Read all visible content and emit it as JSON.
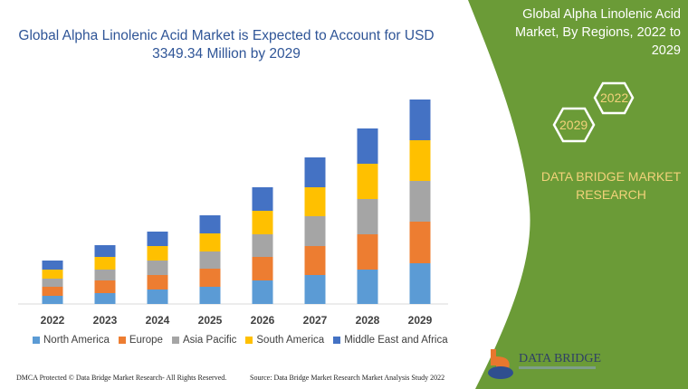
{
  "chart_data": {
    "type": "bar",
    "stacked": true,
    "title": "Global Alpha Linolenic Acid Market is Expected to Account for USD 3349.34 Million by 2029",
    "categories": [
      "2022",
      "2023",
      "2024",
      "2025",
      "2026",
      "2027",
      "2028",
      "2029"
    ],
    "series": [
      {
        "name": "North America",
        "color": "#5b9bd5",
        "values": [
          9,
          12,
          16,
          19,
          26,
          32,
          38,
          45
        ]
      },
      {
        "name": "Europe",
        "color": "#ed7d31",
        "values": [
          10,
          14,
          16,
          20,
          26,
          32,
          39,
          46
        ]
      },
      {
        "name": "Asia Pacific",
        "color": "#a5a5a5",
        "values": [
          9,
          12,
          16,
          19,
          25,
          33,
          39,
          45
        ]
      },
      {
        "name": "South America",
        "color": "#ffc000",
        "values": [
          10,
          14,
          16,
          20,
          26,
          32,
          39,
          45
        ]
      },
      {
        "name": "Middle East and Africa",
        "color": "#4472c4",
        "values": [
          10,
          13,
          16,
          20,
          26,
          33,
          39,
          45
        ]
      }
    ],
    "ylim": [
      0,
      230
    ],
    "grid": false,
    "legend": "bottom"
  },
  "panel": {
    "title": "Global Alpha Linolenic Acid Market, By Regions, 2022 to 2029",
    "hex_left": "2029",
    "hex_right": "2022",
    "brand": "DATA BRIDGE MARKET RESEARCH",
    "logo_text": "DATA BRIDGE",
    "color": "#6b9b37"
  },
  "footer": {
    "left": "DMCA Protected © Data Bridge Market Research- All Rights Reserved.",
    "right": "Source: Data Bridge Market Research Market Analysis Study 2022"
  }
}
